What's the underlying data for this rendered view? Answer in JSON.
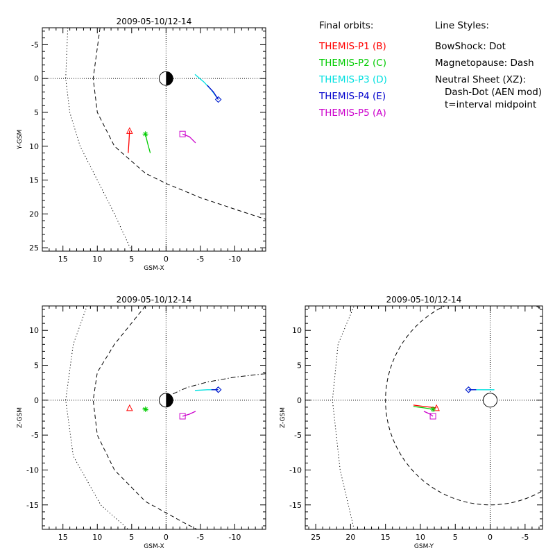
{
  "chart_data": [
    {
      "id": "xy",
      "type": "line",
      "title": "2009-05-10/12-14",
      "xlabel": "GSM-X",
      "ylabel": "Y-GSM",
      "xlim": [
        18,
        -14.5
      ],
      "ylim": [
        -7.5,
        25.5
      ],
      "xticks": [
        15,
        10,
        5,
        0,
        -5,
        -10
      ],
      "xtick_labels": [
        "15",
        "10",
        "5",
        "0",
        "-5",
        "-10"
      ],
      "yticks": [
        -5,
        0,
        5,
        10,
        15,
        20,
        25
      ],
      "ytick_labels": [
        "-5",
        "0",
        "5",
        "10",
        "15",
        "20",
        "25"
      ],
      "boundaries": [
        {
          "name": "BowShock",
          "style": "dot",
          "points": [
            [
              14.3,
              -7.5
            ],
            [
              14.6,
              0
            ],
            [
              14.0,
              5
            ],
            [
              12.5,
              10
            ],
            [
              10.0,
              15
            ],
            [
              7.5,
              20
            ],
            [
              5.0,
              25.5
            ]
          ]
        },
        {
          "name": "Magnetopause",
          "style": "dash",
          "points": [
            [
              9.6,
              -7.5
            ],
            [
              10.6,
              0
            ],
            [
              10.0,
              5
            ],
            [
              7.5,
              10
            ],
            [
              3.0,
              14
            ],
            [
              0,
              15.5
            ],
            [
              -5,
              17.6
            ],
            [
              -10,
              19.3
            ],
            [
              -14.5,
              20.8
            ]
          ]
        }
      ],
      "series": [
        {
          "name": "THEMIS-P1 (B)",
          "color": "#ff0000",
          "marker": "triangle",
          "marker_at": [
            5.3,
            7.7
          ],
          "points": [
            [
              5.5,
              11.0
            ],
            [
              5.4,
              9.5
            ],
            [
              5.3,
              7.7
            ]
          ]
        },
        {
          "name": "THEMIS-P2 (C)",
          "color": "#00cc00",
          "marker": "star",
          "marker_at": [
            3.0,
            8.2
          ],
          "points": [
            [
              2.3,
              11.0
            ],
            [
              2.7,
              9.5
            ],
            [
              3.0,
              8.2
            ]
          ]
        },
        {
          "name": "THEMIS-P3 (D)",
          "color": "#00e0e0",
          "marker": "diamond",
          "marker_at": [
            -7.6,
            3.1
          ],
          "points": [
            [
              -4.2,
              -0.6
            ],
            [
              -5.5,
              0.5
            ],
            [
              -6.6,
              1.7
            ],
            [
              -7.6,
              3.1
            ]
          ]
        },
        {
          "name": "THEMIS-P4 (E)",
          "color": "#0000cc",
          "marker": "diamond",
          "marker_at": [
            -7.6,
            3.1
          ],
          "points": [
            [
              -6.0,
              1.0
            ],
            [
              -6.9,
              2.0
            ],
            [
              -7.6,
              3.1
            ]
          ]
        },
        {
          "name": "THEMIS-P5 (A)",
          "color": "#cc00cc",
          "marker": "square",
          "marker_at": [
            -2.4,
            8.2
          ],
          "points": [
            [
              -2.4,
              8.2
            ],
            [
              -3.4,
              8.6
            ],
            [
              -4.3,
              9.5
            ]
          ]
        }
      ]
    },
    {
      "id": "xz",
      "type": "line",
      "title": "2009-05-10/12-14",
      "xlabel": "GSM-X",
      "ylabel": "Z-GSM",
      "xlim": [
        18,
        -14.5
      ],
      "ylim": [
        -18.5,
        13.5
      ],
      "xticks": [
        15,
        10,
        5,
        0,
        -5,
        -10
      ],
      "xtick_labels": [
        "15",
        "10",
        "5",
        "0",
        "-5",
        "-10"
      ],
      "yticks": [
        10,
        5,
        0,
        -5,
        -10,
        -15
      ],
      "ytick_labels": [
        "10",
        "5",
        "0",
        "-5",
        "-10",
        "-15"
      ],
      "boundaries": [
        {
          "name": "BowShock",
          "style": "dot",
          "points": [
            [
              11.5,
              13.5
            ],
            [
              13.5,
              8
            ],
            [
              14.6,
              0
            ],
            [
              13.5,
              -8
            ],
            [
              9.5,
              -15
            ],
            [
              5.5,
              -18.5
            ]
          ]
        },
        {
          "name": "Magnetopause",
          "style": "dash",
          "points": [
            [
              3.0,
              13.5
            ],
            [
              7.5,
              8
            ],
            [
              10.0,
              4
            ],
            [
              10.6,
              0
            ],
            [
              10.0,
              -5
            ],
            [
              7.5,
              -10
            ],
            [
              3.0,
              -14.5
            ],
            [
              -2.5,
              -17.5
            ],
            [
              -4.5,
              -18.5
            ]
          ]
        },
        {
          "name": "Neutral Sheet",
          "style": "dashdot",
          "points": [
            [
              -1,
              0.9
            ],
            [
              -3,
              1.8
            ],
            [
              -6,
              2.6
            ],
            [
              -10,
              3.3
            ],
            [
              -14.5,
              3.8
            ]
          ]
        }
      ],
      "series": [
        {
          "name": "THEMIS-P1 (B)",
          "color": "#ff0000",
          "marker": "triangle",
          "marker_at": [
            5.3,
            -1.1
          ],
          "points": [
            [
              5.3,
              -1.1
            ]
          ]
        },
        {
          "name": "THEMIS-P2 (C)",
          "color": "#00cc00",
          "marker": "star",
          "marker_at": [
            3.0,
            -1.3
          ],
          "points": [
            [
              3.4,
              -1.2
            ],
            [
              2.6,
              -1.4
            ]
          ]
        },
        {
          "name": "THEMIS-P3 (D)",
          "color": "#00e0e0",
          "marker": "diamond",
          "marker_at": [
            -7.6,
            1.5
          ],
          "points": [
            [
              -4.2,
              1.4
            ],
            [
              -6.0,
              1.5
            ],
            [
              -7.6,
              1.5
            ]
          ]
        },
        {
          "name": "THEMIS-P4 (E)",
          "color": "#0000cc",
          "marker": "diamond",
          "marker_at": [
            -7.6,
            1.5
          ],
          "points": [
            [
              -6.6,
              1.5
            ],
            [
              -7.6,
              1.5
            ]
          ]
        },
        {
          "name": "THEMIS-P5 (A)",
          "color": "#cc00cc",
          "marker": "square",
          "marker_at": [
            -2.4,
            -2.3
          ],
          "points": [
            [
              -2.4,
              -2.3
            ],
            [
              -3.4,
              -2.0
            ],
            [
              -4.3,
              -1.6
            ]
          ]
        }
      ]
    },
    {
      "id": "yz",
      "type": "line",
      "title": "2009-05-10/12-14",
      "xlabel": "GSM-Y",
      "ylabel": "Z-GSM",
      "xlim": [
        26.5,
        -7.5
      ],
      "ylim": [
        -18.5,
        13.5
      ],
      "xticks": [
        25,
        20,
        15,
        10,
        5,
        0,
        -5
      ],
      "xtick_labels": [
        "25",
        "20",
        "15",
        "10",
        "5",
        "0",
        "-5"
      ],
      "yticks": [
        10,
        5,
        0,
        -5,
        -10,
        -15
      ],
      "ytick_labels": [
        "10",
        "5",
        "0",
        "-5",
        "-10",
        "-15"
      ],
      "boundaries": [
        {
          "name": "BowShock",
          "style": "dot",
          "points": [
            [
              19.5,
              -18.5
            ],
            [
              21.5,
              -10
            ],
            [
              22.6,
              0
            ],
            [
              21.8,
              8
            ],
            [
              19.5,
              13.5
            ]
          ]
        },
        {
          "name": "Magnetopause",
          "style": "dash",
          "type": "circle",
          "center": [
            0,
            0
          ],
          "radius": 15
        }
      ],
      "series": [
        {
          "name": "THEMIS-P1 (B)",
          "color": "#ff0000",
          "marker": "triangle",
          "marker_at": [
            7.7,
            -1.1
          ],
          "points": [
            [
              11.0,
              -0.7
            ],
            [
              9.5,
              -0.9
            ],
            [
              7.7,
              -1.1
            ]
          ]
        },
        {
          "name": "THEMIS-P2 (C)",
          "color": "#00cc00",
          "marker": "star",
          "marker_at": [
            8.2,
            -1.3
          ],
          "points": [
            [
              11.0,
              -0.9
            ],
            [
              9.5,
              -1.1
            ],
            [
              8.2,
              -1.3
            ]
          ]
        },
        {
          "name": "THEMIS-P3 (D)",
          "color": "#00e0e0",
          "marker": "diamond",
          "marker_at": [
            3.1,
            1.5
          ],
          "points": [
            [
              -0.6,
              1.5
            ],
            [
              1.5,
              1.5
            ],
            [
              3.1,
              1.5
            ]
          ]
        },
        {
          "name": "THEMIS-P4 (E)",
          "color": "#0000cc",
          "marker": "diamond",
          "marker_at": [
            3.1,
            1.5
          ],
          "points": [
            [
              2.0,
              1.5
            ],
            [
              3.1,
              1.5
            ]
          ]
        },
        {
          "name": "THEMIS-P5 (A)",
          "color": "#cc00cc",
          "marker": "square",
          "marker_at": [
            8.2,
            -2.3
          ],
          "points": [
            [
              9.5,
              -1.6
            ],
            [
              8.6,
              -2.0
            ],
            [
              8.2,
              -2.3
            ]
          ]
        }
      ]
    }
  ],
  "legend": {
    "heading": "Final orbits:",
    "entries": [
      {
        "label": "THEMIS-P1 (B)",
        "color": "#ff0000"
      },
      {
        "label": "THEMIS-P2 (C)",
        "color": "#00cc00"
      },
      {
        "label": "THEMIS-P3 (D)",
        "color": "#00e0e0"
      },
      {
        "label": "THEMIS-P4 (E)",
        "color": "#0000cc"
      },
      {
        "label": "THEMIS-P5 (A)",
        "color": "#cc00cc"
      }
    ]
  },
  "line_styles": {
    "heading": "Line Styles:",
    "lines": [
      "BowShock: Dot",
      "Magnetopause: Dash",
      "Neutral Sheet (XZ):",
      "Dash-Dot (AEN mod)",
      "t=interval midpoint"
    ]
  }
}
